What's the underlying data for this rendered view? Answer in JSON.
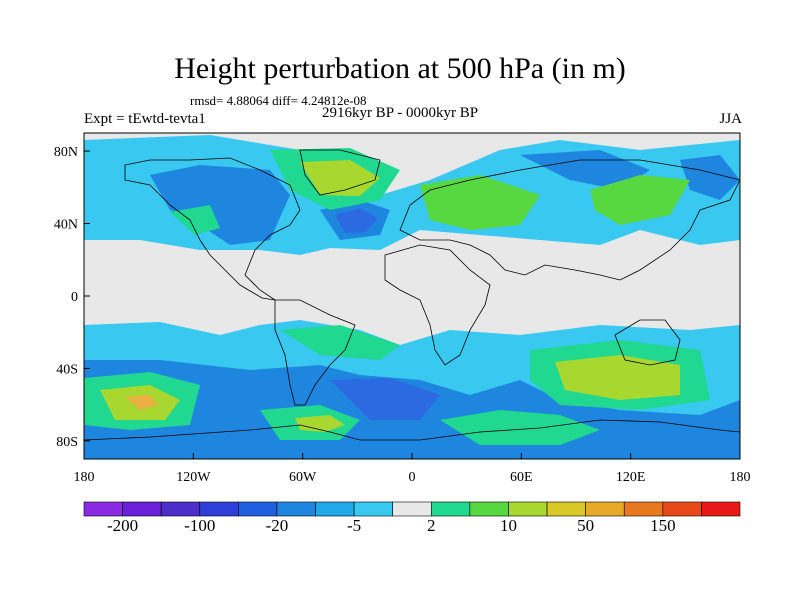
{
  "title": "Height perturbation at 500 hPa (in m)",
  "stats": "rmsd= 4.88064 diff= 4.24812e-08",
  "experiment": "Expt = tEwtd-tevta1",
  "period": "2916kyr BP - 0000kyr BP",
  "season": "JJA",
  "map": {
    "lat_ticks": [
      "80N",
      "40N",
      "0",
      "40S",
      "80S"
    ],
    "lon_ticks": [
      "180",
      "120W",
      "60W",
      "0",
      "60E",
      "120E",
      "180"
    ],
    "lon_range": [
      -180,
      180
    ],
    "lat_range": [
      -90,
      90
    ]
  },
  "colorbar": {
    "colors": [
      "#8a2be2",
      "#6a1fd8",
      "#4b2fc8",
      "#2d3fd8",
      "#1f5fe0",
      "#1f86e0",
      "#20a8e8",
      "#38c8f0",
      "#e8e8e8",
      "#20d890",
      "#58d840",
      "#a8d830",
      "#d8c828",
      "#e8a828",
      "#e87820",
      "#e84818",
      "#e81818"
    ],
    "labels": [
      "-200",
      "-100",
      "-20",
      "-5",
      "2",
      "10",
      "50",
      "150"
    ]
  },
  "fields": {
    "c_neutral": "#e8e8e8",
    "c_lightblue": "#38c8f0",
    "c_blue": "#1f86e0",
    "c_darkblue": "#2b6ae0",
    "c_green": "#20d890",
    "c_yellowgreen": "#58d840",
    "c_lime": "#a8d830",
    "c_orange": "#e8b040"
  }
}
